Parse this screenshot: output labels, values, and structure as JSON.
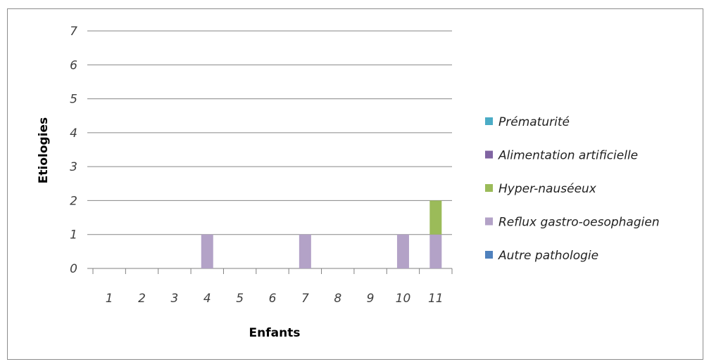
{
  "chart_data": {
    "type": "bar",
    "stacked": true,
    "categories": [
      "1",
      "2",
      "3",
      "4",
      "5",
      "6",
      "7",
      "8",
      "9",
      "10",
      "11"
    ],
    "series": [
      {
        "name": "Prématurité",
        "color": "#4bacc6",
        "values": [
          0,
          0,
          0,
          0,
          0,
          0,
          0,
          0,
          0,
          0,
          0
        ]
      },
      {
        "name": "Alimentation artificielle",
        "color": "#8064a2",
        "values": [
          0,
          0,
          0,
          0,
          0,
          0,
          0,
          0,
          0,
          0,
          0
        ]
      },
      {
        "name": "Hyper-nauséeux",
        "color": "#9bbb59",
        "values": [
          0,
          0,
          0,
          0,
          0,
          0,
          0,
          0,
          0,
          0,
          1
        ]
      },
      {
        "name": "Reflux gastro-oesophagien",
        "color": "#b3a2c7",
        "values": [
          0,
          0,
          0,
          1,
          0,
          0,
          1,
          0,
          0,
          1,
          1
        ]
      },
      {
        "name": "Autre pathologie",
        "color": "#4f81bd",
        "values": [
          0,
          0,
          0,
          0,
          0,
          0,
          0,
          0,
          0,
          0,
          0
        ]
      }
    ],
    "stack_order_bottom_to_top": [
      "Autre pathologie",
      "Reflux gastro-oesophagien",
      "Hyper-nauséeux",
      "Alimentation artificielle",
      "Prématurité"
    ],
    "xlabel": "Enfants",
    "ylabel": "Etiologies",
    "ylim": [
      0,
      7
    ],
    "yticks": [
      0,
      1,
      2,
      3,
      4,
      5,
      6,
      7
    ],
    "grid": true,
    "legend_position": "right"
  }
}
